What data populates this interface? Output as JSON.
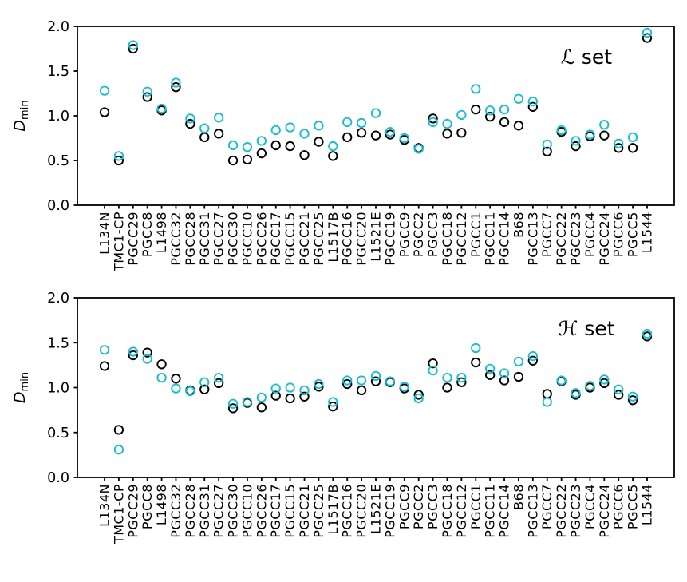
{
  "figure": {
    "background": "#ffffff",
    "axis_color": "#000000"
  },
  "y_axis": {
    "label_main": "D",
    "label_sub": "min",
    "tick_labels": [
      "0.0",
      "0.5",
      "1.0",
      "1.5",
      "2.0"
    ]
  },
  "chart_data": [
    {
      "type": "scatter",
      "panel_label": "ℒ set",
      "ylabel": "D_min",
      "ylim": [
        0.0,
        2.0
      ],
      "yticks": [
        0.0,
        0.5,
        1.0,
        1.5,
        2.0
      ],
      "grid": false,
      "legend": "none",
      "marker": "open-circle",
      "categories": [
        "L134N",
        "TMC1-CP",
        "PGCC29",
        "PGCC8",
        "L1498",
        "PGCC32",
        "PGCC28",
        "PGCC31",
        "PGCC27",
        "PGCC30",
        "PGCC10",
        "PGCC26",
        "PGCC17",
        "PGCC15",
        "PGCC21",
        "PGCC25",
        "L1517B",
        "PGCC16",
        "PGCC20",
        "L1521E",
        "PGCC19",
        "PGCC9",
        "PGCC2",
        "PGCC3",
        "PGCC18",
        "PGCC12",
        "PGCC1",
        "PGCC11",
        "PGCC14",
        "B68",
        "PGCC13",
        "PGCC7",
        "PGCC22",
        "PGCC23",
        "PGCC4",
        "PGCC24",
        "PGCC6",
        "PGCC5",
        "L1544"
      ],
      "series": [
        {
          "name": "black",
          "color": "#000000",
          "values": [
            1.04,
            0.5,
            1.75,
            1.21,
            1.06,
            1.32,
            0.91,
            0.76,
            0.8,
            0.5,
            0.51,
            0.58,
            0.67,
            0.66,
            0.56,
            0.71,
            0.55,
            0.76,
            0.81,
            0.78,
            0.79,
            0.73,
            0.64,
            0.97,
            0.8,
            0.81,
            1.07,
            0.99,
            0.93,
            0.89,
            1.1,
            0.6,
            0.82,
            0.66,
            0.77,
            0.78,
            0.64,
            0.64,
            1.87
          ]
        },
        {
          "name": "cyan",
          "color": "#17becf",
          "values": [
            1.28,
            0.55,
            1.79,
            1.27,
            1.08,
            1.37,
            0.97,
            0.86,
            0.98,
            0.67,
            0.65,
            0.72,
            0.84,
            0.87,
            0.8,
            0.89,
            0.66,
            0.93,
            0.92,
            1.03,
            0.82,
            0.75,
            0.63,
            0.93,
            0.91,
            1.01,
            1.3,
            1.06,
            1.07,
            1.19,
            1.16,
            0.68,
            0.84,
            0.72,
            0.79,
            0.9,
            0.69,
            0.76,
            1.93
          ]
        }
      ]
    },
    {
      "type": "scatter",
      "panel_label": "ℋ set",
      "ylabel": "D_min",
      "ylim": [
        0.0,
        2.0
      ],
      "yticks": [
        0.0,
        0.5,
        1.0,
        1.5,
        2.0
      ],
      "grid": false,
      "legend": "none",
      "marker": "open-circle",
      "categories": [
        "L134N",
        "TMC1-CP",
        "PGCC29",
        "PGCC8",
        "L1498",
        "PGCC32",
        "PGCC28",
        "PGCC31",
        "PGCC27",
        "PGCC30",
        "PGCC10",
        "PGCC26",
        "PGCC17",
        "PGCC15",
        "PGCC21",
        "PGCC25",
        "L1517B",
        "PGCC16",
        "PGCC20",
        "L1521E",
        "PGCC19",
        "PGCC9",
        "PGCC2",
        "PGCC3",
        "PGCC18",
        "PGCC12",
        "PGCC1",
        "PGCC11",
        "PGCC14",
        "B68",
        "PGCC13",
        "PGCC7",
        "PGCC22",
        "PGCC23",
        "PGCC4",
        "PGCC24",
        "PGCC6",
        "PGCC5",
        "L1544"
      ],
      "series": [
        {
          "name": "black",
          "color": "#000000",
          "values": [
            1.24,
            0.53,
            1.36,
            1.39,
            1.26,
            1.1,
            0.97,
            0.98,
            1.05,
            0.77,
            0.83,
            0.78,
            0.91,
            0.88,
            0.9,
            1.01,
            0.79,
            1.04,
            0.97,
            1.07,
            1.06,
            0.99,
            0.92,
            1.27,
            1.0,
            1.06,
            1.28,
            1.14,
            1.08,
            1.12,
            1.3,
            0.93,
            1.07,
            0.92,
            1.0,
            1.05,
            0.92,
            0.86,
            1.57
          ]
        },
        {
          "name": "cyan",
          "color": "#17becf",
          "values": [
            1.42,
            0.31,
            1.4,
            1.32,
            1.11,
            0.99,
            0.96,
            1.06,
            1.11,
            0.82,
            0.84,
            0.89,
            0.99,
            1.0,
            0.97,
            1.04,
            0.84,
            1.08,
            1.08,
            1.13,
            1.07,
            1.01,
            0.88,
            1.19,
            1.11,
            1.11,
            1.44,
            1.21,
            1.16,
            1.29,
            1.35,
            0.84,
            1.08,
            0.94,
            1.02,
            1.09,
            0.98,
            0.9,
            1.6
          ]
        }
      ]
    }
  ]
}
